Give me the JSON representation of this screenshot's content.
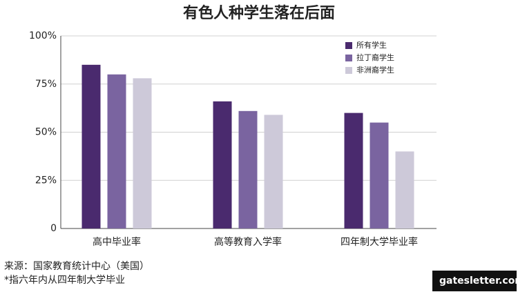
{
  "chart_data": {
    "type": "bar",
    "title": "有色人种学生落在后面",
    "categories": [
      "高中毕业率",
      "高等教育入学率",
      "四年制大学毕业率"
    ],
    "series": [
      {
        "name": "所有学生",
        "color": "#4a2a6e",
        "values": [
          85,
          66,
          60
        ]
      },
      {
        "name": "拉丁裔学生",
        "color": "#7a64a0",
        "values": [
          80,
          61,
          55
        ]
      },
      {
        "name": "非洲裔学生",
        "color": "#cdc9d9",
        "values": [
          78,
          59,
          40
        ]
      }
    ],
    "ylim": [
      0,
      100
    ],
    "yticks": [
      0,
      {
        "value": 25,
        "label": "25%"
      },
      {
        "value": 50,
        "label": "50%"
      },
      {
        "value": 75,
        "label": "75%"
      },
      {
        "value": 100,
        "label": "100%"
      }
    ],
    "grid": true,
    "legend": "top-right",
    "source": "来源：国家教育统计中心（美国）",
    "footnote": "*指六年内从四年制大学毕业",
    "watermark": "gatesletter.com"
  }
}
